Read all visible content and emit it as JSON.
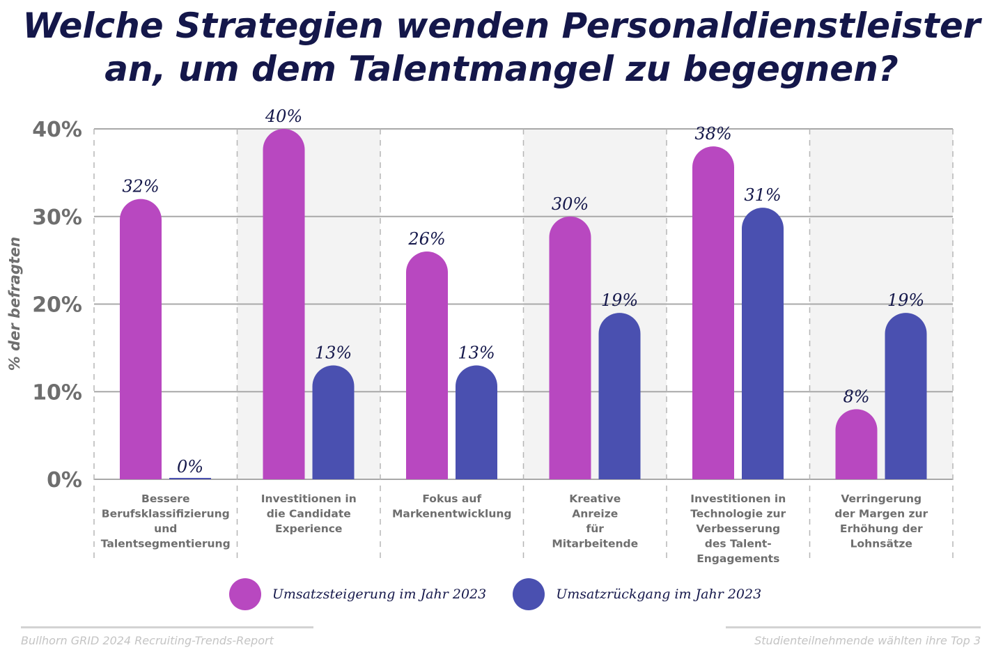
{
  "title_lines": [
    "Welche Strategien wenden Personaldienstleister",
    "an, um dem Talentmangel zu begegnen?"
  ],
  "chart_data": {
    "type": "bar",
    "title": "Welche Strategien wenden Personaldienstleister an, um dem Talentmangel zu begegnen?",
    "ylabel": "% der befragten",
    "xlabel": "",
    "ylim": [
      0,
      40
    ],
    "yticks": [
      "0%",
      "10%",
      "20%",
      "30%",
      "40%"
    ],
    "ytick_values": [
      0,
      10,
      20,
      30,
      40
    ],
    "grid": true,
    "legend_position": "bottom",
    "categories": [
      [
        "Bessere",
        "Berufsklassifizierung",
        "und",
        "Talentsegmentierung"
      ],
      [
        "Investitionen in",
        "die Candidate",
        "Experience"
      ],
      [
        "Fokus auf",
        "Markenentwicklung"
      ],
      [
        "Kreative",
        "Anreize",
        "für",
        "Mitarbeitende"
      ],
      [
        "Investitionen in",
        "Technologie zur",
        "Verbesserung",
        "des Talent-",
        "Engagements"
      ],
      [
        "Verringerung",
        "der Margen zur",
        "Erhöhung der",
        "Lohnsätze"
      ]
    ],
    "series": [
      {
        "name": "Umsatzsteigerung im Jahr 2023",
        "color": "#b848c0",
        "values": [
          32,
          40,
          26,
          30,
          38,
          8
        ],
        "labels": [
          "32%",
          "40%",
          "26%",
          "30%",
          "38%",
          "8%"
        ]
      },
      {
        "name": "Umsatzrückgang im Jahr 2023",
        "color": "#4a50b0",
        "values": [
          0,
          13,
          13,
          19,
          31,
          19
        ],
        "labels": [
          "0%",
          "13%",
          "13%",
          "19%",
          "31%",
          "19%"
        ]
      }
    ]
  },
  "footer": {
    "source": "Bullhorn GRID 2024 Recruiting-Trends-Report",
    "note": "Studienteilnehmende wählten ihre Top 3"
  }
}
